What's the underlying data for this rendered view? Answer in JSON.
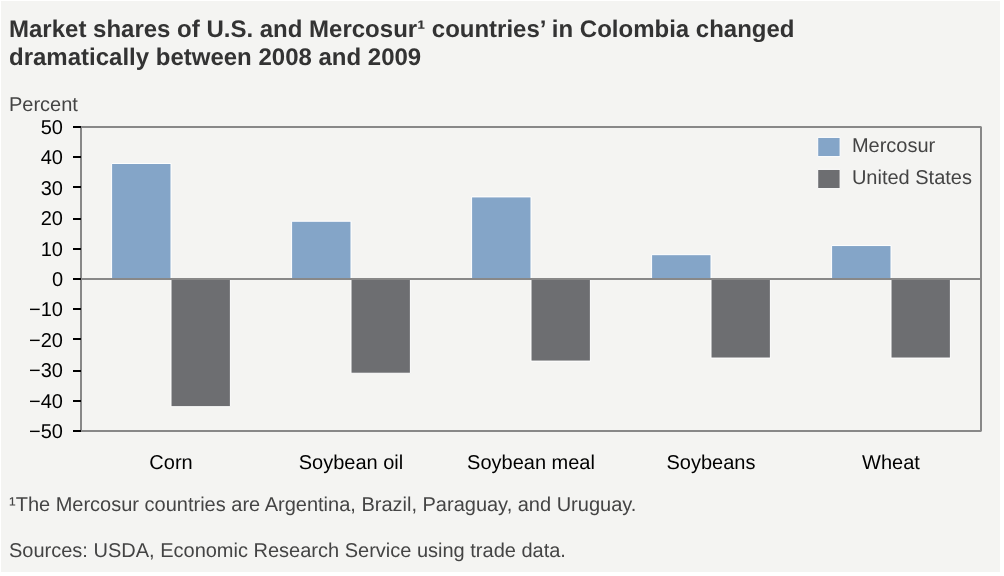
{
  "chart_data": {
    "type": "bar",
    "title": "Market shares of U.S. and Mercosur¹ countries’ in Colombia changed dramatically between 2008 and 2009",
    "ylabel": "Percent",
    "categories": [
      "Corn",
      "Soybean oil",
      "Soybean meal",
      "Soybeans",
      "Wheat"
    ],
    "series": [
      {
        "name": "Mercosur",
        "color": "#84a5c8",
        "values": [
          38,
          19,
          27,
          8,
          11
        ]
      },
      {
        "name": "United States",
        "color": "#6d6e71",
        "values": [
          -42,
          -31,
          -27,
          -26,
          -26
        ]
      }
    ],
    "ylim": [
      -50,
      50
    ],
    "yticks": [
      -50,
      -40,
      -30,
      -20,
      -10,
      0,
      10,
      20,
      30,
      40,
      50
    ],
    "grid": false,
    "legend": "top right",
    "ref_lines": [
      {
        "axis": "y",
        "value": 0,
        "color": "#888888"
      }
    ],
    "annotations": [
      "¹The Mercosur countries are Argentina, Brazil, Paraguay, and Uruguay.",
      "Sources: USDA, Economic Research Service using trade data."
    ]
  }
}
